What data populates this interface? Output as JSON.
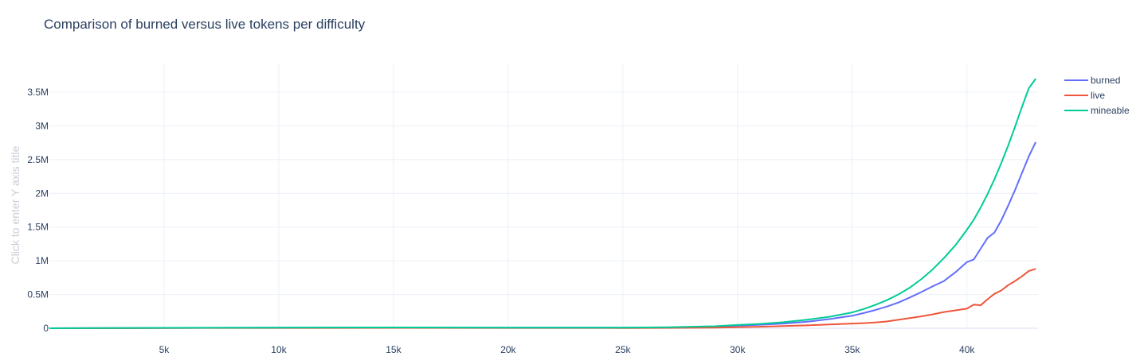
{
  "chart_data": {
    "type": "line",
    "title": "Comparison of burned versus live tokens per difficulty",
    "ylabel": "Click to enter Y axis title",
    "xlabel": "",
    "xlim": [
      0,
      43100
    ],
    "ylim": [
      -60000,
      3850000
    ],
    "x_ticks": [
      {
        "value": 5000,
        "label": "5k"
      },
      {
        "value": 10000,
        "label": "10k"
      },
      {
        "value": 15000,
        "label": "15k"
      },
      {
        "value": 20000,
        "label": "20k"
      },
      {
        "value": 25000,
        "label": "25k"
      },
      {
        "value": 30000,
        "label": "30k"
      },
      {
        "value": 35000,
        "label": "35k"
      },
      {
        "value": 40000,
        "label": "40k"
      }
    ],
    "y_ticks": [
      {
        "value": 0,
        "label": "0"
      },
      {
        "value": 500000,
        "label": "0.5M"
      },
      {
        "value": 1000000,
        "label": "1M"
      },
      {
        "value": 1500000,
        "label": "1.5M"
      },
      {
        "value": 2000000,
        "label": "2M"
      },
      {
        "value": 2500000,
        "label": "2.5M"
      },
      {
        "value": 3000000,
        "label": "3M"
      },
      {
        "value": 3500000,
        "label": "3.5M"
      }
    ],
    "grid": true,
    "legend_position": "top-right",
    "series": [
      {
        "name": "burned",
        "color": "#636efa",
        "x": [
          0,
          5000,
          10000,
          15000,
          20000,
          25000,
          27000,
          29000,
          30000,
          31000,
          32000,
          33000,
          34000,
          35000,
          35500,
          36000,
          36500,
          37000,
          37500,
          38000,
          38500,
          39000,
          39500,
          40000,
          40300,
          40600,
          40900,
          41200,
          41500,
          41800,
          42100,
          42400,
          42700,
          43000
        ],
        "y": [
          0,
          5000,
          8000,
          10000,
          9000,
          8000,
          12000,
          22000,
          38000,
          52000,
          70000,
          95000,
          135000,
          185000,
          225000,
          270000,
          320000,
          380000,
          455000,
          535000,
          620000,
          700000,
          830000,
          980000,
          1020000,
          1180000,
          1340000,
          1420000,
          1600000,
          1820000,
          2050000,
          2300000,
          2550000,
          2760000
        ]
      },
      {
        "name": "live",
        "color": "#ef553b",
        "x": [
          0,
          5000,
          10000,
          15000,
          20000,
          25000,
          27000,
          29000,
          30000,
          31000,
          32000,
          33000,
          34000,
          35000,
          35500,
          36000,
          36500,
          37000,
          37500,
          38000,
          38500,
          39000,
          39500,
          40000,
          40300,
          40600,
          40900,
          41200,
          41500,
          41800,
          42100,
          42400,
          42700,
          43000
        ],
        "y": [
          0,
          3000,
          5000,
          6000,
          5000,
          4000,
          6000,
          9000,
          14000,
          22000,
          32000,
          42000,
          55000,
          70000,
          75000,
          85000,
          100000,
          125000,
          150000,
          175000,
          205000,
          240000,
          265000,
          290000,
          350000,
          340000,
          430000,
          510000,
          560000,
          640000,
          700000,
          770000,
          850000,
          880000
        ]
      },
      {
        "name": "mineable",
        "color": "#00cc96",
        "x": [
          0,
          5000,
          10000,
          15000,
          20000,
          25000,
          27000,
          29000,
          30000,
          31000,
          32000,
          33000,
          34000,
          35000,
          35500,
          36000,
          36500,
          37000,
          37500,
          38000,
          38500,
          39000,
          39500,
          40000,
          40300,
          40600,
          40900,
          41200,
          41500,
          41800,
          42100,
          42400,
          42700,
          43000
        ],
        "y": [
          0,
          6000,
          9000,
          12000,
          10000,
          9000,
          15000,
          30000,
          48000,
          65000,
          90000,
          125000,
          170000,
          235000,
          285000,
          345000,
          415000,
          500000,
          600000,
          725000,
          870000,
          1040000,
          1230000,
          1460000,
          1610000,
          1790000,
          1990000,
          2210000,
          2450000,
          2710000,
          2990000,
          3280000,
          3560000,
          3700000
        ]
      }
    ]
  }
}
